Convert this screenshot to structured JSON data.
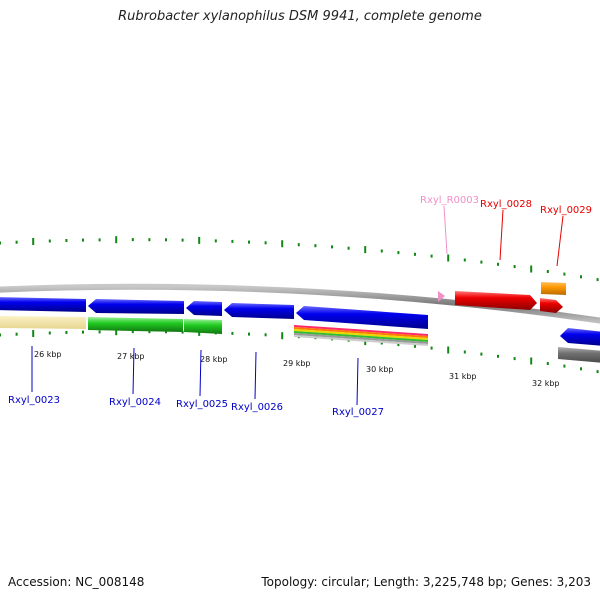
{
  "title": "Rubrobacter xylanophilus DSM 9941, complete genome",
  "accession": "Accession: NC_008148",
  "summary": "Topology: circular; Length: 3,225,748 bp; Genes: 3,203",
  "scale_labels": [
    "26 kbp",
    "27 kbp",
    "28 kbp",
    "29 kbp",
    "30 kbp",
    "31 kbp",
    "32 kbp"
  ],
  "gene_labels": [
    "Rxyl_0023",
    "Rxyl_0024",
    "Rxyl_0025",
    "Rxyl_0026",
    "Rxyl_0027",
    "Rxyl_R0003",
    "Rxyl_0028",
    "Rxyl_0029"
  ],
  "colors": {
    "cds": "#0000e6",
    "rna": "#f090c8",
    "highlight": "#e60000",
    "orange": "#ff9900",
    "green": "#22cc22",
    "tick": "#118811",
    "backbone": "#888888"
  }
}
